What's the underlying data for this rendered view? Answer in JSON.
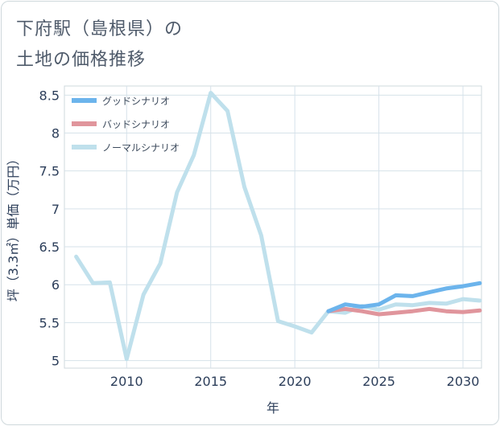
{
  "title": {
    "line1": "下府駅（島根県）の",
    "line2": "土地の価格推移"
  },
  "chart_data": {
    "type": "line",
    "xlabel": "年",
    "ylabel": "坪（3.3㎡）単価（万円）",
    "xlim": [
      2006.3,
      2031.1
    ],
    "ylim": [
      4.9,
      8.62
    ],
    "x_ticks": [
      "2010",
      "2015",
      "2020",
      "2025",
      "2030"
    ],
    "y_ticks": [
      "5",
      "5.5",
      "6",
      "6.5",
      "7",
      "7.5",
      "8",
      "8.5"
    ],
    "legend_position": "top-left",
    "series": [
      {
        "name": "グッドシナリオ",
        "color": "#6cb4ec",
        "points": [
          [
            2022,
            5.65
          ],
          [
            2023,
            5.74
          ],
          [
            2024,
            5.71
          ],
          [
            2025,
            5.74
          ],
          [
            2026,
            5.86
          ],
          [
            2027,
            5.85
          ],
          [
            2028,
            5.9
          ],
          [
            2029,
            5.95
          ],
          [
            2030,
            5.98
          ],
          [
            2031,
            6.02
          ]
        ]
      },
      {
        "name": "バッドシナリオ",
        "color": "#e0959c",
        "points": [
          [
            2022,
            5.65
          ],
          [
            2023,
            5.68
          ],
          [
            2024,
            5.65
          ],
          [
            2025,
            5.61
          ],
          [
            2026,
            5.63
          ],
          [
            2027,
            5.65
          ],
          [
            2028,
            5.68
          ],
          [
            2029,
            5.65
          ],
          [
            2030,
            5.64
          ],
          [
            2031,
            5.66
          ]
        ]
      },
      {
        "name": "ノーマルシナリオ",
        "color": "#bfe0ec",
        "points": [
          [
            2007,
            6.37
          ],
          [
            2008,
            6.02
          ],
          [
            2009,
            6.03
          ],
          [
            2010,
            5.02
          ],
          [
            2011,
            5.87
          ],
          [
            2012,
            6.28
          ],
          [
            2013,
            7.22
          ],
          [
            2014,
            7.71
          ],
          [
            2015,
            8.53
          ],
          [
            2016,
            8.29
          ],
          [
            2017,
            7.29
          ],
          [
            2018,
            6.65
          ],
          [
            2019,
            5.52
          ],
          [
            2020,
            5.45
          ],
          [
            2021,
            5.37
          ],
          [
            2022,
            5.65
          ],
          [
            2023,
            5.63
          ],
          [
            2024,
            5.72
          ],
          [
            2025,
            5.67
          ],
          [
            2026,
            5.74
          ],
          [
            2027,
            5.73
          ],
          [
            2028,
            5.76
          ],
          [
            2029,
            5.75
          ],
          [
            2030,
            5.81
          ],
          [
            2031,
            5.79
          ]
        ]
      }
    ]
  }
}
